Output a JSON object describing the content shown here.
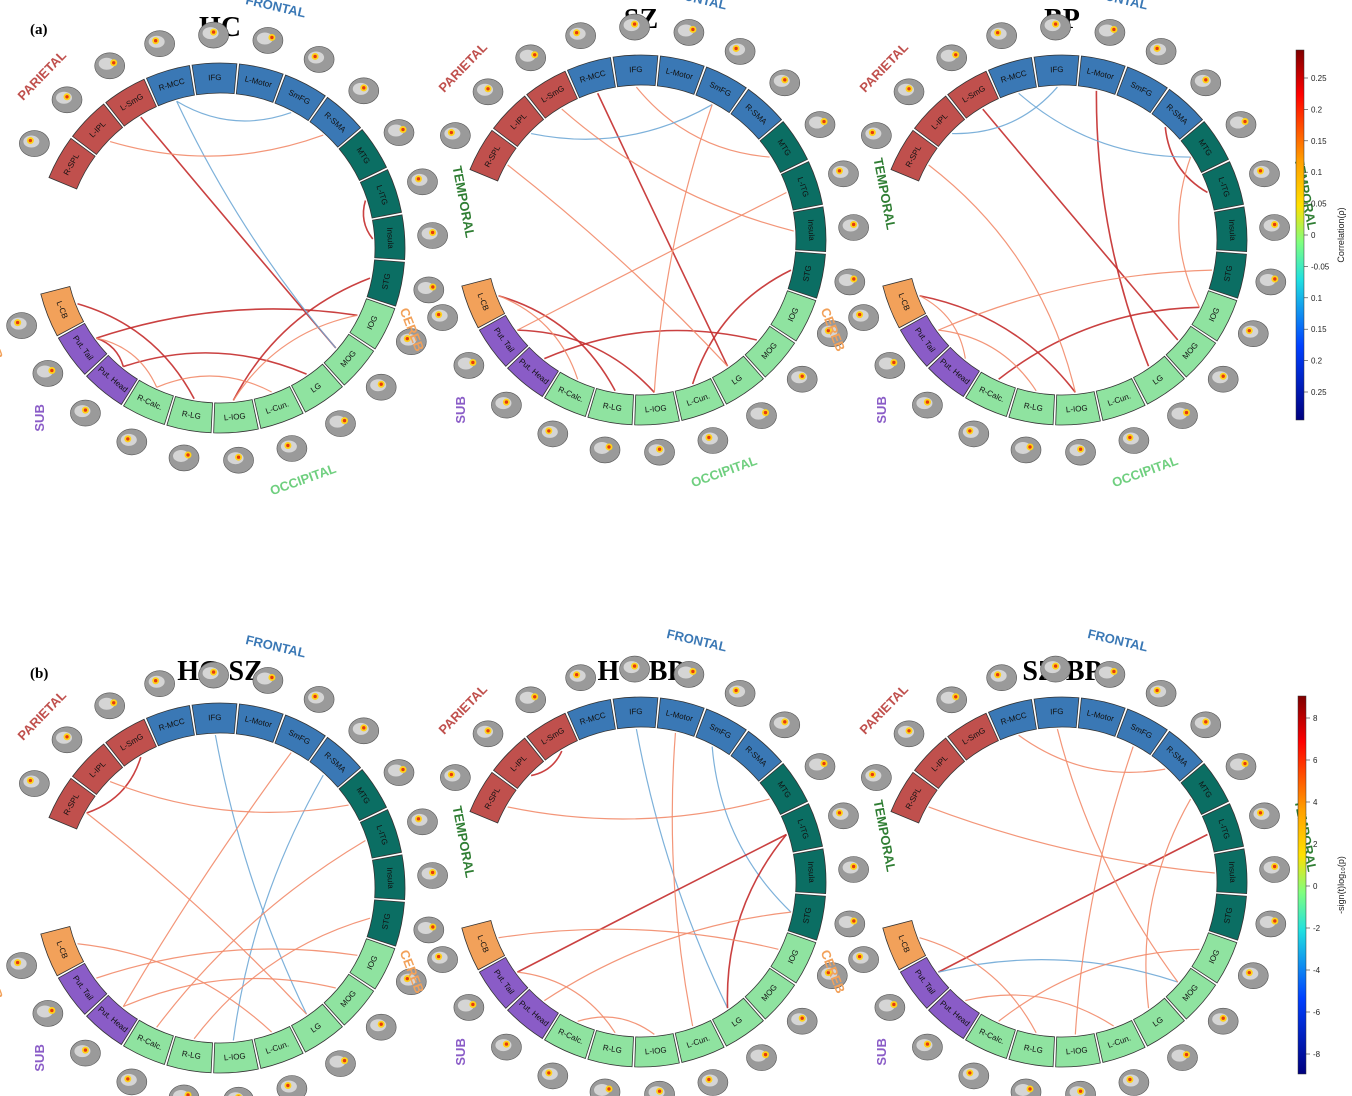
{
  "panel_a": {
    "letter": "(a)",
    "titles": [
      "HC",
      "SZ",
      "BP"
    ],
    "colorbar": {
      "label": "Correlation(ρ)",
      "ticks": [
        "0.25",
        "0.2",
        "0.15",
        "0.1",
        "0.05",
        "0",
        "-0.05",
        "0.1",
        "0.15",
        "0.2",
        "0.25"
      ]
    }
  },
  "panel_b": {
    "letter": "(b)",
    "titles": [
      "HC-SZ",
      "HC-BP",
      "SZ-BP"
    ],
    "colorbar": {
      "label": "-sign(t)log₁₀(p)",
      "ticks": [
        "8",
        "6",
        "4",
        "2",
        "0",
        "-2",
        "-4",
        "-6",
        "-8"
      ]
    }
  },
  "groups": [
    {
      "name": "PARIETAL",
      "color": "#c0504d",
      "segments": [
        "R-SPL",
        "L-IPL",
        "L-SmG"
      ]
    },
    {
      "name": "FRONTAL",
      "color": "#3a78b5",
      "segments": [
        "R-MCC",
        "IFG",
        "L-Motor",
        "SmFG",
        "R-SMA"
      ]
    },
    {
      "name": "TEMPORAL",
      "color": "#0b6e63",
      "segments": [
        "MTG",
        "L-ITG",
        "Insula",
        "STG"
      ]
    },
    {
      "name": "OCCIPITAL",
      "color": "#8fe3a0",
      "segments": [
        "IOG",
        "MOG",
        "LG",
        "L-Cun.",
        "L-IOG",
        "R-LG",
        "R-Calc."
      ]
    },
    {
      "name": "SUB",
      "color": "#8a5cc7",
      "segments": [
        "Put. Head",
        "Put. Tail"
      ]
    },
    {
      "name": "CEREB",
      "color": "#f2a15a",
      "segments": [
        "L-CB"
      ]
    }
  ],
  "group_label_colors": {
    "PARIETAL": "#c0504d",
    "FRONTAL": "#3a78b5",
    "TEMPORAL": "#2e7d32",
    "OCCIPITAL": "#6fcf7f",
    "SUB": "#8a5cc7",
    "CEREB": "#f2a15a"
  }
}
